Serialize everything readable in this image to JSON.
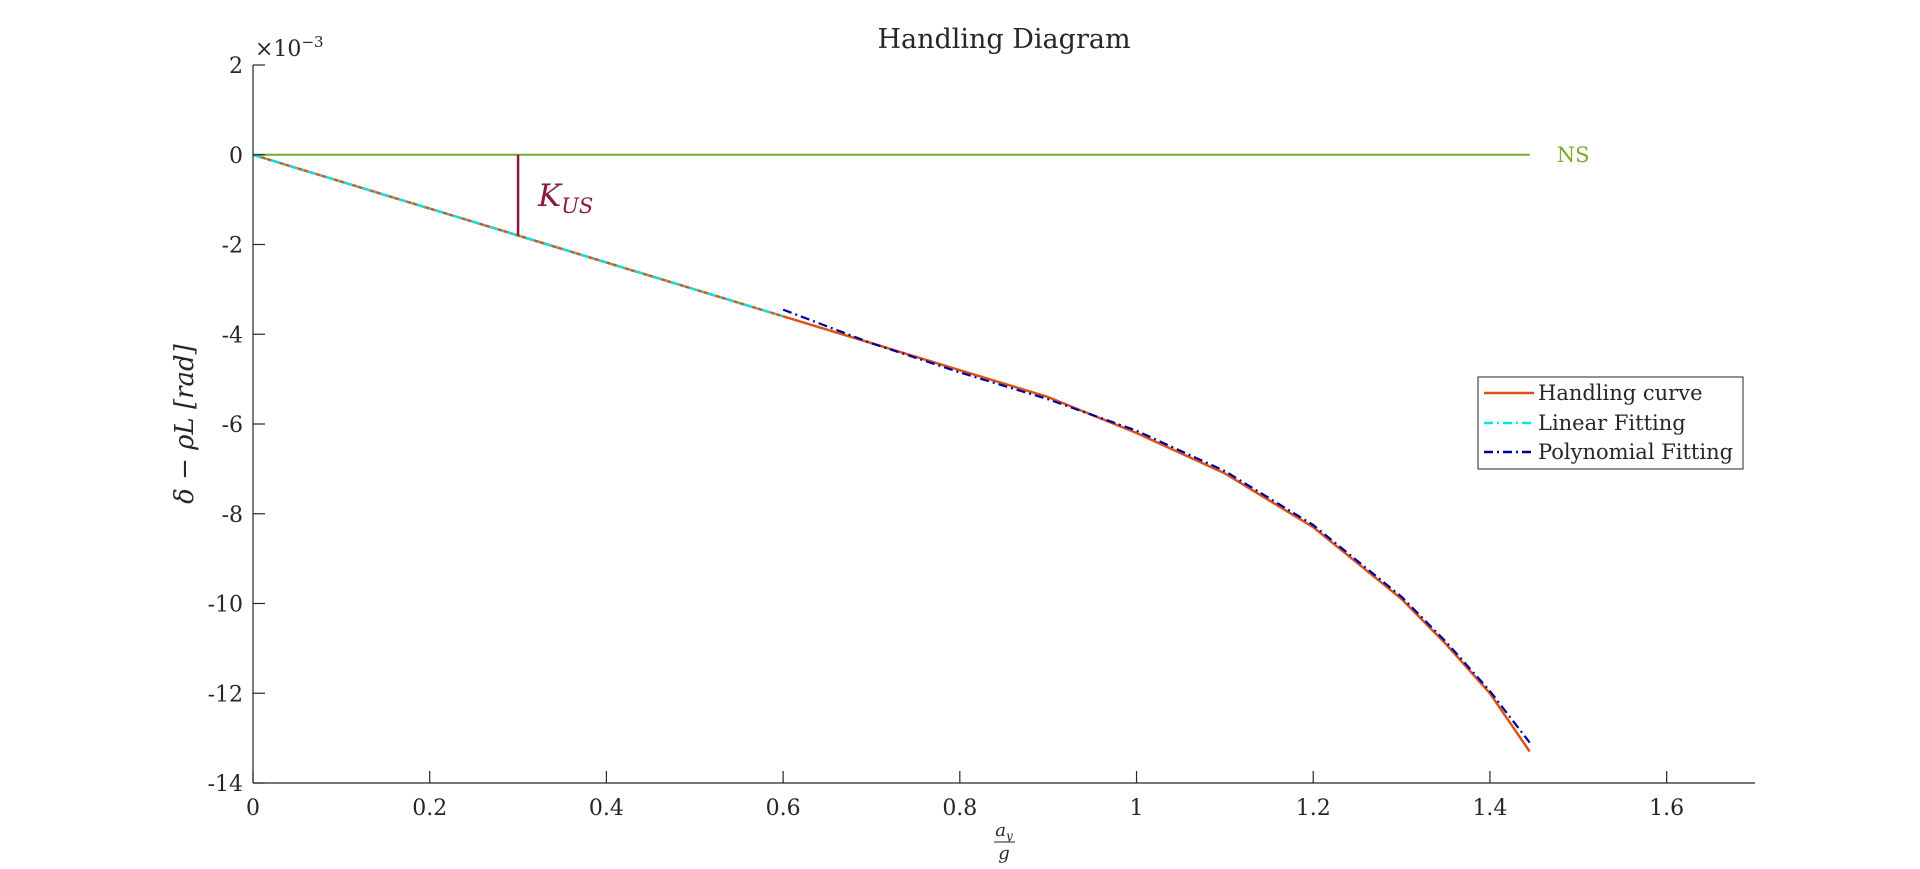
{
  "chart_data": {
    "type": "line",
    "title": "Handling Diagram",
    "xlabel_numerator": "a",
    "xlabel_numerator_sub": "y",
    "xlabel_denominator": "g",
    "ylabel": "δ − ρL [rad]",
    "yscale_base": "×10",
    "yscale_exponent": "−3",
    "xlim": [
      0,
      1.7
    ],
    "ylim": [
      -14,
      2
    ],
    "xticks": [
      0,
      0.2,
      0.4,
      0.6,
      0.8,
      1,
      1.2,
      1.4,
      1.6
    ],
    "xtick_labels": [
      "0",
      "0.2",
      "0.4",
      "0.6",
      "0.8",
      "1",
      "1.2",
      "1.4",
      "1.6"
    ],
    "yticks": [
      2,
      0,
      -2,
      -4,
      -6,
      -8,
      -10,
      -12,
      -14
    ],
    "ytick_labels": [
      "2",
      "0",
      "-2",
      "-4",
      "-6",
      "-8",
      "-10",
      "-12",
      "-14"
    ],
    "grid": false,
    "legend_position": "right",
    "series": [
      {
        "name": "Handling curve",
        "color": "#d95319",
        "style": "solid",
        "x": [
          0,
          0.1,
          0.2,
          0.3,
          0.4,
          0.5,
          0.6,
          0.7,
          0.8,
          0.9,
          1.0,
          1.1,
          1.2,
          1.3,
          1.35,
          1.4,
          1.445
        ],
        "y": [
          0,
          -0.6,
          -1.2,
          -1.8,
          -2.4,
          -3.0,
          -3.6,
          -4.2,
          -4.8,
          -5.4,
          -6.2,
          -7.1,
          -8.3,
          -9.9,
          -10.9,
          -12.0,
          -13.3
        ]
      },
      {
        "name": "Linear Fitting",
        "color": "#00e6e6",
        "style": "dashdot",
        "x": [
          0,
          0.6
        ],
        "y": [
          0,
          -3.6
        ]
      },
      {
        "name": "Polynomial Fitting",
        "color": "#0000a0",
        "style": "dashdot",
        "x": [
          0.6,
          0.7,
          0.8,
          0.9,
          1.0,
          1.1,
          1.2,
          1.3,
          1.35,
          1.4,
          1.445
        ],
        "y": [
          -3.45,
          -4.2,
          -4.85,
          -5.45,
          -6.15,
          -7.05,
          -8.25,
          -9.85,
          -10.85,
          -11.95,
          -13.1
        ]
      }
    ],
    "reference_line": {
      "label": "NS",
      "y": 0,
      "x": [
        0,
        1.445
      ],
      "color": "#77ac30"
    },
    "annotation": {
      "label_main": "K",
      "label_sub": "US",
      "x": 0.3,
      "y": [
        0,
        -1.8
      ],
      "color": "#8b1a3c"
    }
  }
}
